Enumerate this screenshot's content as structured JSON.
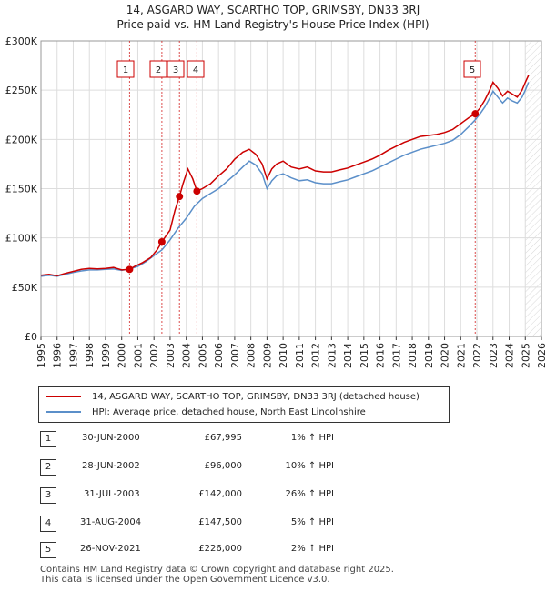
{
  "title": {
    "line1": "14, ASGARD WAY, SCARTHO TOP, GRIMSBY, DN33 3RJ",
    "line2": "Price paid vs. HM Land Registry's House Price Index (HPI)"
  },
  "legend": {
    "property": "14, ASGARD WAY, SCARTHO TOP, GRIMSBY, DN33 3RJ (detached house)",
    "hpi": "HPI: Average price, detached house, North East Lincolnshire"
  },
  "transactions": [
    {
      "num": "1",
      "date": "30-JUN-2000",
      "price": "£67,995",
      "hpi": "1% ↑ HPI"
    },
    {
      "num": "2",
      "date": "28-JUN-2002",
      "price": "£96,000",
      "hpi": "10% ↑ HPI"
    },
    {
      "num": "3",
      "date": "31-JUL-2003",
      "price": "£142,000",
      "hpi": "26% ↑ HPI"
    },
    {
      "num": "4",
      "date": "31-AUG-2004",
      "price": "£147,500",
      "hpi": "5% ↑ HPI"
    },
    {
      "num": "5",
      "date": "26-NOV-2021",
      "price": "£226,000",
      "hpi": "2% ↑ HPI"
    }
  ],
  "footer": {
    "line1": "Contains HM Land Registry data © Crown copyright and database right 2025.",
    "line2": "This data is licensed under the Open Government Licence v3.0."
  },
  "chart_data": {
    "type": "line",
    "xlim": [
      1995,
      2026
    ],
    "ylim": [
      0,
      300000
    ],
    "yticks": [
      {
        "value": 0,
        "label": "£0"
      },
      {
        "value": 50000,
        "label": "£50K"
      },
      {
        "value": 100000,
        "label": "£100K"
      },
      {
        "value": 150000,
        "label": "£150K"
      },
      {
        "value": 200000,
        "label": "£200K"
      },
      {
        "value": 250000,
        "label": "£250K"
      },
      {
        "value": 300000,
        "label": "£300K"
      }
    ],
    "xticks": [
      "1995",
      "1996",
      "1997",
      "1998",
      "1999",
      "2000",
      "2001",
      "2002",
      "2003",
      "2004",
      "2005",
      "2006",
      "2007",
      "2008",
      "2009",
      "2010",
      "2011",
      "2012",
      "2013",
      "2014",
      "2015",
      "2016",
      "2017",
      "2018",
      "2019",
      "2020",
      "2021",
      "2022",
      "2023",
      "2024",
      "2025",
      "2026"
    ],
    "grid": true,
    "future_from": 2025.0,
    "series": [
      {
        "name": "14, ASGARD WAY, SCARTHO TOP, GRIMSBY, DN33 3RJ (detached house)",
        "color": "#cc0000",
        "x": [
          1995.0,
          1995.5,
          1996.0,
          1996.5,
          1997.0,
          1997.5,
          1998.0,
          1998.5,
          1999.0,
          1999.5,
          2000.0,
          2000.49,
          2000.8,
          2001.3,
          2001.8,
          2002.2,
          2002.49,
          2002.7,
          2003.0,
          2003.3,
          2003.58,
          2003.8,
          2004.1,
          2004.4,
          2004.66,
          2005.0,
          2005.5,
          2006.0,
          2006.5,
          2007.0,
          2007.5,
          2007.9,
          2008.3,
          2008.7,
          2009.0,
          2009.3,
          2009.6,
          2010.0,
          2010.5,
          2011.0,
          2011.5,
          2012.0,
          2012.5,
          2013.0,
          2013.5,
          2014.0,
          2014.5,
          2015.0,
          2015.5,
          2016.0,
          2016.5,
          2017.0,
          2017.5,
          2018.0,
          2018.5,
          2019.0,
          2019.5,
          2020.0,
          2020.5,
          2021.0,
          2021.5,
          2021.9,
          2022.2,
          2022.5,
          2022.8,
          2023.0,
          2023.3,
          2023.6,
          2023.9,
          2024.2,
          2024.5,
          2024.8,
          2025.0,
          2025.2
        ],
        "y": [
          62000,
          63000,
          61500,
          64000,
          66000,
          68000,
          69000,
          68500,
          69000,
          70000,
          67500,
          67995,
          71000,
          75000,
          80000,
          88000,
          96000,
          101000,
          108000,
          128000,
          142000,
          155000,
          170000,
          160000,
          147500,
          150000,
          155000,
          163000,
          170000,
          180000,
          187000,
          190000,
          185000,
          175000,
          160000,
          170000,
          175000,
          178000,
          172000,
          170000,
          172000,
          168000,
          167000,
          167000,
          169000,
          171000,
          174000,
          177000,
          180000,
          184000,
          189000,
          193000,
          197000,
          200000,
          203000,
          204000,
          205000,
          207000,
          210000,
          216000,
          222000,
          226000,
          232000,
          240000,
          250000,
          258000,
          252000,
          244000,
          249000,
          246000,
          243000,
          250000,
          258000,
          265000
        ]
      },
      {
        "name": "HPI: Average price, detached house, North East Lincolnshire",
        "color": "#5b8fc9",
        "x": [
          1995.0,
          1995.5,
          1996.0,
          1996.5,
          1997.0,
          1997.5,
          1998.0,
          1998.5,
          1999.0,
          1999.5,
          2000.0,
          2000.5,
          2001.0,
          2001.5,
          2002.0,
          2002.5,
          2003.0,
          2003.5,
          2004.0,
          2004.5,
          2005.0,
          2005.5,
          2006.0,
          2006.5,
          2007.0,
          2007.5,
          2007.9,
          2008.3,
          2008.7,
          2009.0,
          2009.3,
          2009.6,
          2010.0,
          2010.5,
          2011.0,
          2011.5,
          2012.0,
          2012.5,
          2013.0,
          2013.5,
          2014.0,
          2014.5,
          2015.0,
          2015.5,
          2016.0,
          2016.5,
          2017.0,
          2017.5,
          2018.0,
          2018.5,
          2019.0,
          2019.5,
          2020.0,
          2020.5,
          2021.0,
          2021.5,
          2021.9,
          2022.2,
          2022.5,
          2022.8,
          2023.0,
          2023.3,
          2023.6,
          2023.9,
          2024.2,
          2024.5,
          2024.8,
          2025.0,
          2025.2
        ],
        "y": [
          61000,
          62000,
          61000,
          63000,
          65000,
          66500,
          67500,
          67500,
          68000,
          68500,
          67000,
          68500,
          71000,
          76000,
          82000,
          88000,
          98000,
          110000,
          120000,
          132000,
          140000,
          145000,
          150000,
          157000,
          164000,
          172000,
          178000,
          174000,
          165000,
          150000,
          158000,
          163000,
          165000,
          161000,
          158000,
          159000,
          156000,
          155000,
          155000,
          157000,
          159000,
          162000,
          165000,
          168000,
          172000,
          176000,
          180000,
          184000,
          187000,
          190000,
          192000,
          194000,
          196000,
          199000,
          205000,
          213000,
          220000,
          226000,
          233000,
          242000,
          249000,
          243000,
          237000,
          242000,
          239000,
          237000,
          243000,
          250000,
          258000
        ]
      }
    ],
    "annotations": [
      {
        "label": "1",
        "x": 2000.49,
        "y": 67995
      },
      {
        "label": "2",
        "x": 2002.49,
        "y": 96000
      },
      {
        "label": "3",
        "x": 2003.58,
        "y": 142000
      },
      {
        "label": "4",
        "x": 2004.66,
        "y": 147500
      },
      {
        "label": "5",
        "x": 2021.9,
        "y": 226000
      }
    ]
  }
}
